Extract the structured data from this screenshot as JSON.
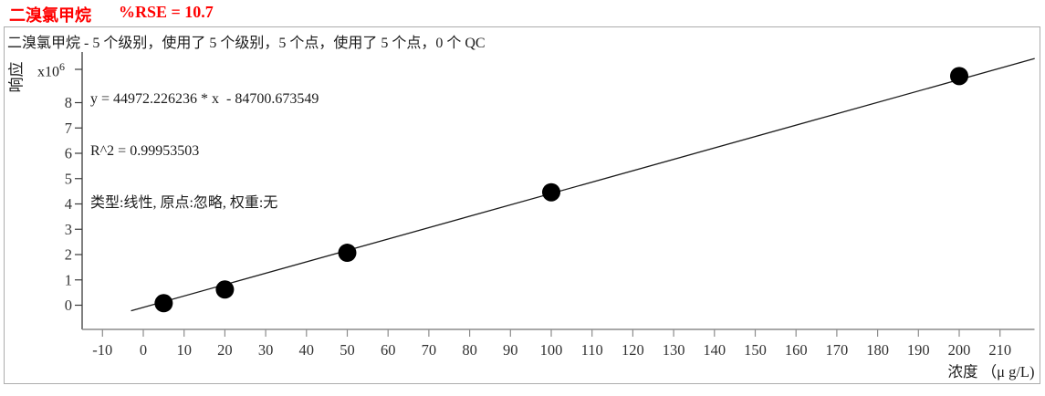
{
  "header": {
    "compound": "二溴氯甲烷",
    "rse_text": "%RSE = 10.7"
  },
  "info_line": "二溴氯甲烷 - 5 个级别，使用了 5 个级别，5 个点，使用了 5 个点，0 个 QC",
  "annotation": {
    "equation": "y = 44972.226236 * x  - 84700.673549",
    "r_squared": "R^2 = 0.99953503",
    "fit_info": "类型:线性, 原点:忽略, 权重:无"
  },
  "axes": {
    "ylabel": "响应",
    "y_mult_base": "x10",
    "y_mult_exp": "6",
    "xlabel": "浓度 （μ g/L)"
  },
  "chart_data": {
    "type": "scatter",
    "title": "二溴氯甲烷  %RSE = 10.7",
    "xlabel": "浓度 （μ g/L)",
    "ylabel": "响应 (x10^6)",
    "grid": false,
    "legend_position": "none",
    "xlim": [
      -15,
      218.5
    ],
    "ylim_e6": [
      -1.0,
      9.9
    ],
    "x_ticks": [
      -10,
      0,
      10,
      20,
      30,
      40,
      50,
      60,
      70,
      80,
      90,
      100,
      110,
      120,
      130,
      140,
      150,
      160,
      170,
      180,
      190,
      200,
      210
    ],
    "y_ticks": [
      0,
      1,
      2,
      3,
      4,
      5,
      6,
      7,
      8
    ],
    "points": [
      {
        "x": 5,
        "y_e6": 0.08
      },
      {
        "x": 20,
        "y_e6": 0.62
      },
      {
        "x": 50,
        "y_e6": 2.07
      },
      {
        "x": 100,
        "y_e6": 4.46
      },
      {
        "x": 200,
        "y_e6": 9.05
      }
    ],
    "fit": {
      "type": "线性",
      "origin": "忽略",
      "weight": "无",
      "slope": 44972.226236,
      "intercept": -84700.673549,
      "r2": 0.99953503,
      "x_draw_range": [
        -3,
        218.5
      ]
    }
  }
}
